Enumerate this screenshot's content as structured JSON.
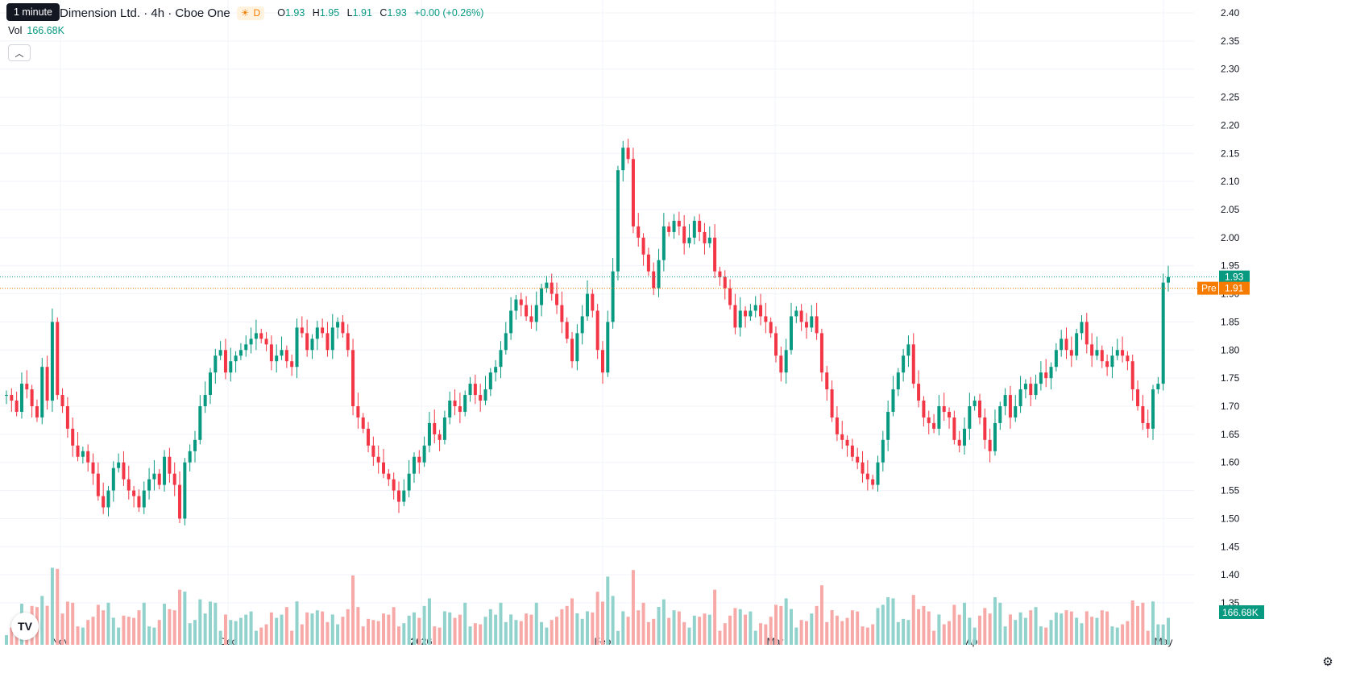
{
  "tooltip": "1 minute",
  "legend": {
    "title": "Dimension Ltd. · 4h · Cboe One",
    "session_icon": "sun-icon",
    "interval_badge": "D",
    "o_label": "O",
    "o": "1.93",
    "h_label": "H",
    "h": "1.95",
    "l_label": "L",
    "l": "1.91",
    "c_label": "C",
    "c": "1.93",
    "change": "+0.00 (+0.26%)"
  },
  "volume": {
    "label": "Vol",
    "value": "166.68K"
  },
  "colors": {
    "up": "#089981",
    "down": "#f23645",
    "vol_up": "#92d2cc",
    "vol_down": "#f7a9a7",
    "premarket": "#f57c00"
  },
  "chart_data": {
    "type": "candlestick",
    "price_ticks": [
      "2.40",
      "2.35",
      "2.30",
      "2.25",
      "2.20",
      "2.15",
      "2.10",
      "2.05",
      "2.00",
      "1.95",
      "1.90",
      "1.85",
      "1.80",
      "1.75",
      "1.70",
      "1.65",
      "1.60",
      "1.55",
      "1.50",
      "1.45",
      "1.40",
      "1.35"
    ],
    "y_range": [
      1.35,
      2.4
    ],
    "time_ticks": [
      "Nov",
      "Dec",
      "2026",
      "Feb",
      "Mar",
      "Apr",
      "May"
    ],
    "last_price": "1.93",
    "premarket_label": "Pre",
    "premarket_price": "1.91",
    "volume_badge": "166.68K",
    "candles_close": [
      1.72,
      1.71,
      1.69,
      1.74,
      1.73,
      1.7,
      1.68,
      1.77,
      1.71,
      1.85,
      1.72,
      1.7,
      1.66,
      1.63,
      1.61,
      1.62,
      1.6,
      1.58,
      1.54,
      1.52,
      1.55,
      1.59,
      1.6,
      1.57,
      1.55,
      1.54,
      1.52,
      1.55,
      1.57,
      1.58,
      1.56,
      1.61,
      1.58,
      1.56,
      1.5,
      1.6,
      1.62,
      1.64,
      1.7,
      1.72,
      1.76,
      1.79,
      1.8,
      1.76,
      1.78,
      1.79,
      1.8,
      1.81,
      1.82,
      1.83,
      1.82,
      1.81,
      1.78,
      1.79,
      1.8,
      1.78,
      1.77,
      1.84,
      1.83,
      1.8,
      1.82,
      1.84,
      1.83,
      1.8,
      1.84,
      1.85,
      1.83,
      1.8,
      1.7,
      1.68,
      1.66,
      1.63,
      1.61,
      1.6,
      1.58,
      1.57,
      1.55,
      1.53,
      1.55,
      1.58,
      1.61,
      1.6,
      1.63,
      1.67,
      1.65,
      1.64,
      1.68,
      1.71,
      1.7,
      1.69,
      1.72,
      1.74,
      1.72,
      1.71,
      1.73,
      1.76,
      1.77,
      1.8,
      1.83,
      1.87,
      1.89,
      1.88,
      1.86,
      1.85,
      1.88,
      1.91,
      1.92,
      1.9,
      1.88,
      1.85,
      1.82,
      1.78,
      1.83,
      1.86,
      1.9,
      1.87,
      1.8,
      1.76,
      1.85,
      1.94,
      2.12,
      2.16,
      2.14,
      2.02,
      2.0,
      1.97,
      1.94,
      1.91,
      1.96,
      2.02,
      2.01,
      2.03,
      2.02,
      1.99,
      2.0,
      2.03,
      2.01,
      1.99,
      2.0,
      1.94,
      1.93,
      1.91,
      1.88,
      1.84,
      1.87,
      1.86,
      1.87,
      1.88,
      1.86,
      1.85,
      1.83,
      1.79,
      1.76,
      1.8,
      1.86,
      1.87,
      1.85,
      1.84,
      1.86,
      1.83,
      1.76,
      1.73,
      1.68,
      1.65,
      1.64,
      1.63,
      1.61,
      1.6,
      1.58,
      1.57,
      1.56,
      1.6,
      1.64,
      1.69,
      1.73,
      1.76,
      1.79,
      1.81,
      1.74,
      1.71,
      1.68,
      1.67,
      1.66,
      1.7,
      1.69,
      1.68,
      1.64,
      1.63,
      1.66,
      1.7,
      1.71,
      1.68,
      1.64,
      1.62,
      1.67,
      1.7,
      1.72,
      1.68,
      1.7,
      1.73,
      1.74,
      1.72,
      1.74,
      1.76,
      1.75,
      1.77,
      1.8,
      1.82,
      1.8,
      1.79,
      1.83,
      1.85,
      1.81,
      1.79,
      1.8,
      1.78,
      1.77,
      1.79,
      1.8,
      1.79,
      1.78,
      1.73,
      1.7,
      1.67,
      1.66,
      1.73,
      1.74,
      1.92,
      1.93
    ]
  }
}
